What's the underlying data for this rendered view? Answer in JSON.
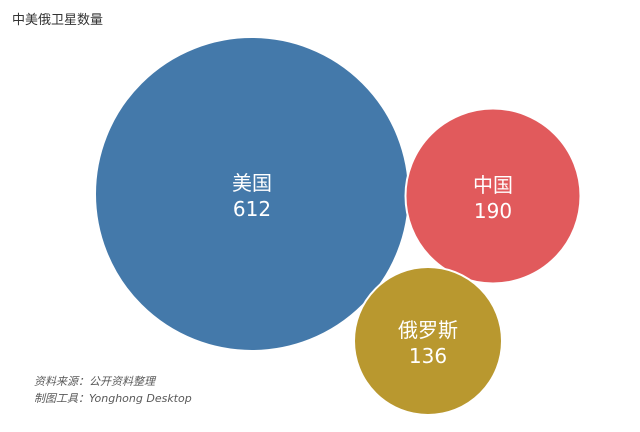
{
  "chart_data": {
    "type": "bubble",
    "title": "中美俄卫星数量",
    "series": [
      {
        "name": "美国",
        "value": 612,
        "color": "#4479aa"
      },
      {
        "name": "中国",
        "value": 190,
        "color": "#e15a5c"
      },
      {
        "name": "俄罗斯",
        "value": 136,
        "color": "#b9982f"
      }
    ],
    "legend": "none",
    "grid": false
  },
  "footnote": {
    "source": "资料来源：公开资料整理",
    "tool": "制图工具：Yonghong Desktop"
  }
}
